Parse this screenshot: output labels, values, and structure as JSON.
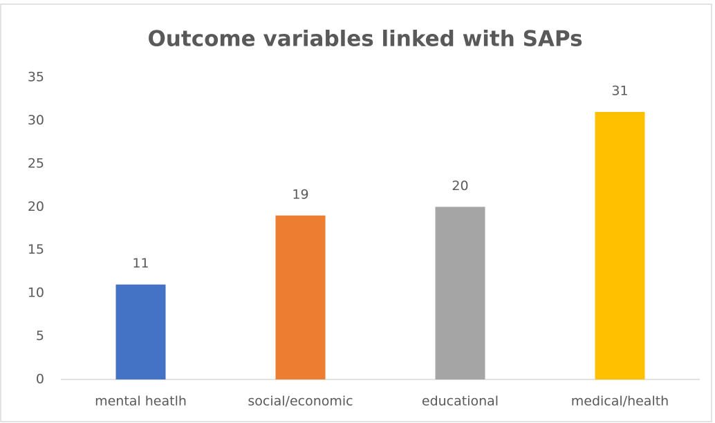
{
  "chart_data": {
    "type": "bar",
    "title": "Outcome variables linked with SAPs",
    "categories": [
      "mental heatlh",
      "social/economic",
      "educational",
      "medical/health"
    ],
    "values": [
      11,
      19,
      20,
      31
    ],
    "colors": [
      "#4472c4",
      "#ed7d31",
      "#a5a5a5",
      "#ffc000"
    ],
    "ylim": [
      0,
      35
    ],
    "yticks": [
      0,
      5,
      10,
      15,
      20,
      25,
      30,
      35
    ],
    "grid": false,
    "data_labels": true
  }
}
